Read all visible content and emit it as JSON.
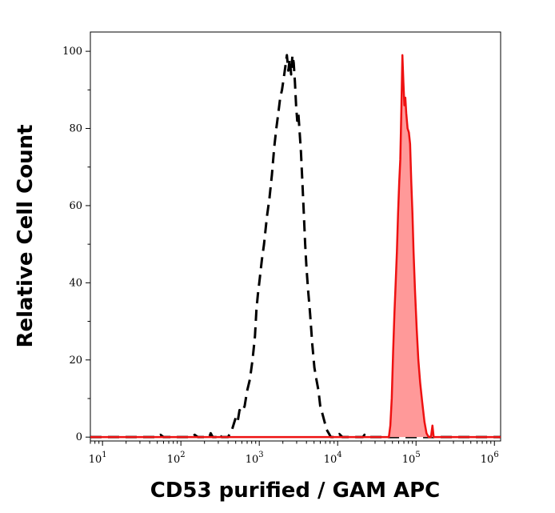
{
  "chart_data": {
    "type": "area",
    "title": "",
    "xlabel": "CD53 purified / GAM APC",
    "ylabel": "Relative Cell Count",
    "x_scale": "log",
    "xlim": [
      7,
      1200000
    ],
    "ylim": [
      -1,
      105
    ],
    "x_ticks": [
      {
        "base": "10",
        "exp": "1",
        "value": 10
      },
      {
        "base": "10",
        "exp": "2",
        "value": 100
      },
      {
        "base": "10",
        "exp": "3",
        "value": 1000
      },
      {
        "base": "10",
        "exp": "4",
        "value": 10000
      },
      {
        "base": "10",
        "exp": "5",
        "value": 100000
      },
      {
        "base": "10",
        "exp": "6",
        "value": 1000000
      }
    ],
    "y_ticks": [
      "0",
      "20",
      "40",
      "60",
      "80",
      "100"
    ],
    "y_tick_values": [
      0,
      20,
      40,
      60,
      80,
      100
    ],
    "grid": false,
    "legend": "none",
    "series": [
      {
        "style": "dashed-black",
        "color": "#000000",
        "fill": "none",
        "points": [
          [
            7,
            0
          ],
          [
            50,
            0
          ],
          [
            55,
            0.6
          ],
          [
            60,
            0
          ],
          [
            140,
            0
          ],
          [
            150,
            0.6
          ],
          [
            165,
            0
          ],
          [
            230,
            0
          ],
          [
            240,
            1
          ],
          [
            255,
            0
          ],
          [
            300,
            0
          ],
          [
            310,
            0.7
          ],
          [
            330,
            0
          ],
          [
            400,
            0
          ],
          [
            450,
            2
          ],
          [
            500,
            5
          ],
          [
            530,
            4
          ],
          [
            560,
            7
          ],
          [
            600,
            6.5
          ],
          [
            650,
            8
          ],
          [
            700,
            12
          ],
          [
            760,
            15
          ],
          [
            820,
            20
          ],
          [
            880,
            26
          ],
          [
            920,
            33
          ],
          [
            960,
            37
          ],
          [
            1000,
            40
          ],
          [
            1080,
            46
          ],
          [
            1150,
            50
          ],
          [
            1250,
            57
          ],
          [
            1350,
            62
          ],
          [
            1450,
            68
          ],
          [
            1550,
            75
          ],
          [
            1650,
            80
          ],
          [
            1750,
            84
          ],
          [
            1850,
            88
          ],
          [
            1950,
            90
          ],
          [
            2050,
            93
          ],
          [
            2150,
            96
          ],
          [
            2250,
            99
          ],
          [
            2350,
            95
          ],
          [
            2450,
            98
          ],
          [
            2550,
            94
          ],
          [
            2650,
            99
          ],
          [
            2750,
            97
          ],
          [
            2850,
            92
          ],
          [
            2950,
            86
          ],
          [
            3050,
            82
          ],
          [
            3150,
            84
          ],
          [
            3250,
            80
          ],
          [
            3400,
            74
          ],
          [
            3550,
            66
          ],
          [
            3700,
            58
          ],
          [
            3850,
            50
          ],
          [
            4000,
            44
          ],
          [
            4200,
            38
          ],
          [
            4450,
            32
          ],
          [
            4750,
            24
          ],
          [
            5050,
            18
          ],
          [
            5350,
            15
          ],
          [
            5700,
            12
          ],
          [
            6000,
            8
          ],
          [
            6400,
            6
          ],
          [
            6800,
            4
          ],
          [
            7200,
            2
          ],
          [
            7700,
            1
          ],
          [
            8200,
            0
          ],
          [
            9500,
            0
          ],
          [
            10500,
            0.8
          ],
          [
            11500,
            0
          ],
          [
            21000,
            0
          ],
          [
            22000,
            0.6
          ],
          [
            23000,
            0
          ],
          [
            1200000,
            0
          ]
        ]
      },
      {
        "style": "solid-red-filled",
        "color": "#ee1111",
        "fill": "#ff9999",
        "points": [
          [
            7,
            0
          ],
          [
            45000,
            0
          ],
          [
            47000,
            3
          ],
          [
            49000,
            10
          ],
          [
            51000,
            22
          ],
          [
            53000,
            32
          ],
          [
            55000,
            40
          ],
          [
            57000,
            48
          ],
          [
            59000,
            58
          ],
          [
            61000,
            66
          ],
          [
            63000,
            72
          ],
          [
            65000,
            85
          ],
          [
            67000,
            99
          ],
          [
            69000,
            92
          ],
          [
            71000,
            86
          ],
          [
            73000,
            88
          ],
          [
            75000,
            84
          ],
          [
            78000,
            80
          ],
          [
            81000,
            79
          ],
          [
            84000,
            76
          ],
          [
            87000,
            66
          ],
          [
            90000,
            58
          ],
          [
            93000,
            48
          ],
          [
            97000,
            38
          ],
          [
            102000,
            28
          ],
          [
            107000,
            20
          ],
          [
            113000,
            14
          ],
          [
            120000,
            9
          ],
          [
            128000,
            4
          ],
          [
            136000,
            1
          ],
          [
            145000,
            0
          ],
          [
            155000,
            0
          ],
          [
            162000,
            3
          ],
          [
            168000,
            0
          ],
          [
            1200000,
            0
          ]
        ]
      }
    ]
  }
}
